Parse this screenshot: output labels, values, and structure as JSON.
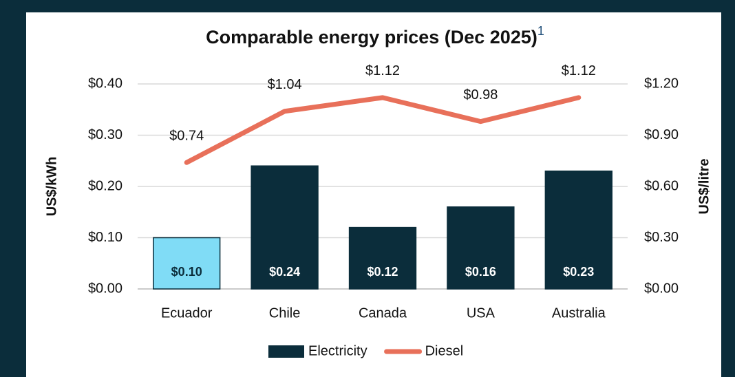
{
  "chart_data": {
    "type": "combo",
    "title": "Comparable energy prices (Dec 2025)",
    "title_superscript": "1",
    "categories": [
      "Ecuador",
      "Chile",
      "Canada",
      "USA",
      "Australia"
    ],
    "series": [
      {
        "name": "Electricity",
        "type": "bar",
        "axis": "y",
        "color": "#0b2d3b",
        "point_colors": [
          "#80dcf6",
          "#0b2d3b",
          "#0b2d3b",
          "#0b2d3b",
          "#0b2d3b"
        ],
        "label_colors": [
          "#0b2d3b",
          "#ffffff",
          "#ffffff",
          "#ffffff",
          "#ffffff"
        ],
        "values": [
          0.1,
          0.24,
          0.12,
          0.16,
          0.23
        ],
        "value_labels": [
          "$0.10",
          "$0.24",
          "$0.12",
          "$0.16",
          "$0.23"
        ]
      },
      {
        "name": "Diesel",
        "type": "line",
        "axis": "y2",
        "color": "#e8705a",
        "values": [
          0.74,
          1.04,
          1.12,
          0.98,
          1.12
        ],
        "value_labels": [
          "$0.74",
          "$1.04",
          "$1.12",
          "$0.98",
          "$1.12"
        ]
      }
    ],
    "ylabel": "US$/kWh",
    "y2label": "US$/litre",
    "ylim": [
      0,
      0.4
    ],
    "yticks": [
      {
        "value": 0,
        "label": "$0.00"
      },
      {
        "value": 0.1,
        "label": "$0.10"
      },
      {
        "value": 0.2,
        "label": "$0.20"
      },
      {
        "value": 0.3,
        "label": "$0.30"
      },
      {
        "value": 0.4,
        "label": "$0.40"
      }
    ],
    "y2lim": [
      0,
      1.2
    ],
    "y2ticks": [
      {
        "value": 0,
        "label": "$0.00"
      },
      {
        "value": 0.3,
        "label": "$0.30"
      },
      {
        "value": 0.6,
        "label": "$0.60"
      },
      {
        "value": 0.9,
        "label": "$0.90"
      },
      {
        "value": 1.2,
        "label": "$1.20"
      }
    ],
    "grid": true,
    "legend": "bottom"
  }
}
